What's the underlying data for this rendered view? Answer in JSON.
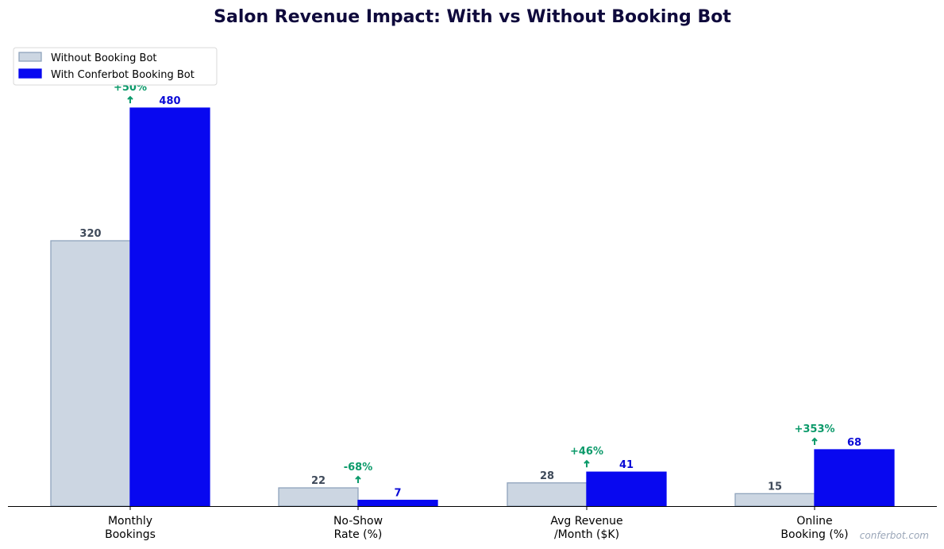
{
  "chart_data": {
    "type": "bar",
    "title": "Salon Revenue Impact: With vs Without Booking Bot",
    "categories": [
      "Monthly\nBookings",
      "No-Show\nRate (%)",
      "Avg Revenue\n/Month ($K)",
      "Online\nBooking (%)"
    ],
    "series": [
      {
        "name": "Without Booking Bot",
        "values": [
          320,
          22,
          28,
          15
        ],
        "color": "#ccd6e2",
        "edge": "#8fa3bc",
        "label_color": "#3f4a5a"
      },
      {
        "name": "With Conferbot Booking Bot",
        "values": [
          480,
          7,
          41,
          68
        ],
        "color": "#0808f0",
        "edge": "#0808f0",
        "label_color": "#0a0ad6"
      }
    ],
    "changes": [
      "+50%",
      "-68%",
      "+46%",
      "+353%"
    ],
    "change_color": "#0b9a6a",
    "ylim": [
      0,
      480
    ],
    "grid": false,
    "legend": "top-left",
    "xlabel": "",
    "ylabel": "",
    "watermark": "conferbot.com"
  }
}
